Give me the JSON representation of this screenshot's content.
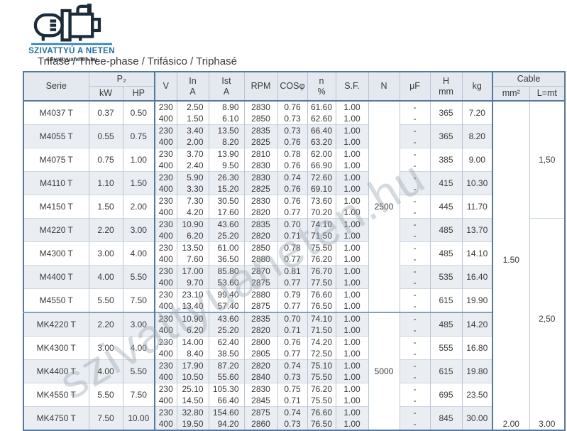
{
  "logo": {
    "brand": "SZIVATTYÚ A NETEN",
    "domain": "szivattyuaneten.hu",
    "brand_color": "#1e6f9e",
    "underline_color": "#2e7fae"
  },
  "title": "Trifase / Three-phase / Trifásico / Triphasé",
  "watermark": "szivattyuaneten.hu",
  "colors": {
    "table_frame": "#54799c",
    "grid_line": "#b7c6d4",
    "stripe": "#eaeef3",
    "header_bg": "#e3e9ee"
  },
  "table": {
    "header": {
      "serie": "Serie",
      "p2": "P₂",
      "kw": "kW",
      "hp": "HP",
      "v": "V",
      "in1": "In",
      "in2": "A",
      "ist1": "Ist",
      "ist2": "A",
      "rpm": "RPM",
      "cos": "COSφ",
      "n1": "n",
      "n2": "%",
      "sf": "S.F.",
      "n_col": "N",
      "uf": "μF",
      "h1": "H",
      "h2": "mm",
      "kg": "kg",
      "cable": "Cable",
      "mm2": "mm²",
      "lmt": "L=mt"
    },
    "models": [
      {
        "serie": "M4037 T",
        "kw": "0.37",
        "hp": "0.50",
        "h": "365",
        "kg": "7.20",
        "rows": [
          {
            "v": "230",
            "in": "2.50",
            "ist": "8.90",
            "rpm": "2830",
            "cos": "0.76",
            "n": "61.60",
            "sf": "1.00",
            "uf": "-"
          },
          {
            "v": "400",
            "in": "1.50",
            "ist": "6.10",
            "rpm": "2850",
            "cos": "0.73",
            "n": "62.60",
            "sf": "1.00",
            "uf": "-"
          }
        ]
      },
      {
        "serie": "M4055 T",
        "kw": "0.55",
        "hp": "0.75",
        "h": "365",
        "kg": "8.20",
        "rows": [
          {
            "v": "230",
            "in": "3.40",
            "ist": "13.50",
            "rpm": "2835",
            "cos": "0.73",
            "n": "66.40",
            "sf": "1.00",
            "uf": "-"
          },
          {
            "v": "400",
            "in": "2.00",
            "ist": "8.20",
            "rpm": "2825",
            "cos": "0.76",
            "n": "63.20",
            "sf": "1.00",
            "uf": "-"
          }
        ]
      },
      {
        "serie": "M4075 T",
        "kw": "0.75",
        "hp": "1.00",
        "h": "385",
        "kg": "9.00",
        "rows": [
          {
            "v": "230",
            "in": "3.70",
            "ist": "13.90",
            "rpm": "2810",
            "cos": "0.78",
            "n": "62.00",
            "sf": "1.00",
            "uf": "-"
          },
          {
            "v": "400",
            "in": "2.40",
            "ist": "9.50",
            "rpm": "2830",
            "cos": "0.76",
            "n": "66.90",
            "sf": "1.00",
            "uf": "-"
          }
        ]
      },
      {
        "serie": "M4110 T",
        "kw": "1.10",
        "hp": "1.50",
        "h": "415",
        "kg": "10.30",
        "rows": [
          {
            "v": "230",
            "in": "5.90",
            "ist": "26.30",
            "rpm": "2830",
            "cos": "0.74",
            "n": "72.60",
            "sf": "1.00",
            "uf": "-"
          },
          {
            "v": "400",
            "in": "3.30",
            "ist": "15.20",
            "rpm": "2825",
            "cos": "0.76",
            "n": "69.10",
            "sf": "1.00",
            "uf": "-"
          }
        ]
      },
      {
        "serie": "M4150 T",
        "kw": "1.50",
        "hp": "2.00",
        "h": "445",
        "kg": "11.70",
        "rows": [
          {
            "v": "230",
            "in": "7.30",
            "ist": "30.50",
            "rpm": "2830",
            "cos": "0.76",
            "n": "73.60",
            "sf": "1.00",
            "uf": "-"
          },
          {
            "v": "400",
            "in": "4.20",
            "ist": "17.60",
            "rpm": "2820",
            "cos": "0.77",
            "n": "70.20",
            "sf": "1.00",
            "uf": "-"
          }
        ]
      },
      {
        "serie": "M4220 T",
        "kw": "2.20",
        "hp": "3.00",
        "h": "485",
        "kg": "13.70",
        "rows": [
          {
            "v": "230",
            "in": "10.90",
            "ist": "43.60",
            "rpm": "2835",
            "cos": "0.70",
            "n": "74.10",
            "sf": "1.00",
            "uf": "-"
          },
          {
            "v": "400",
            "in": "6.20",
            "ist": "25.20",
            "rpm": "2820",
            "cos": "0.71",
            "n": "71.50",
            "sf": "1.00",
            "uf": "-"
          }
        ]
      },
      {
        "serie": "M4300 T",
        "kw": "3.00",
        "hp": "4.00",
        "h": "485",
        "kg": "14.10",
        "rows": [
          {
            "v": "230",
            "in": "13.50",
            "ist": "61.00",
            "rpm": "2850",
            "cos": "0.78",
            "n": "75.50",
            "sf": "1.00",
            "uf": "-"
          },
          {
            "v": "400",
            "in": "7.60",
            "ist": "36.50",
            "rpm": "2880",
            "cos": "0.77",
            "n": "76.20",
            "sf": "1.00",
            "uf": "-"
          }
        ]
      },
      {
        "serie": "M4400 T",
        "kw": "4.00",
        "hp": "5.50",
        "h": "535",
        "kg": "16.40",
        "rows": [
          {
            "v": "230",
            "in": "17.00",
            "ist": "85.80",
            "rpm": "2870",
            "cos": "0.81",
            "n": "76.70",
            "sf": "1.00",
            "uf": "-"
          },
          {
            "v": "400",
            "in": "9.70",
            "ist": "53.60",
            "rpm": "2875",
            "cos": "0.77",
            "n": "77.50",
            "sf": "1.00",
            "uf": "-"
          }
        ]
      },
      {
        "serie": "M4550 T",
        "kw": "5.50",
        "hp": "7.50",
        "h": "615",
        "kg": "19.90",
        "rows": [
          {
            "v": "230",
            "in": "23.10",
            "ist": "99.40",
            "rpm": "2880",
            "cos": "0.79",
            "n": "76.60",
            "sf": "1.00",
            "uf": "-"
          },
          {
            "v": "400",
            "in": "13.40",
            "ist": "57.40",
            "rpm": "2875",
            "cos": "0.77",
            "n": "76.50",
            "sf": "1.00",
            "uf": "-"
          }
        ]
      },
      {
        "serie": "MK4220 T",
        "kw": "2.20",
        "hp": "3.00",
        "h": "485",
        "kg": "14.20",
        "group_start": true,
        "rows": [
          {
            "v": "230",
            "in": "10.90",
            "ist": "43.60",
            "rpm": "2835",
            "cos": "0.70",
            "n": "74.10",
            "sf": "1.00",
            "uf": "-"
          },
          {
            "v": "400",
            "in": "6.20",
            "ist": "25.20",
            "rpm": "2820",
            "cos": "0.71",
            "n": "71.50",
            "sf": "1.00",
            "uf": "-"
          }
        ]
      },
      {
        "serie": "MK4300 T",
        "kw": "3.00",
        "hp": "4.00",
        "h": "555",
        "kg": "16.80",
        "rows": [
          {
            "v": "230",
            "in": "14.00",
            "ist": "62.40",
            "rpm": "2800",
            "cos": "0.76",
            "n": "74.20",
            "sf": "1.00",
            "uf": "-"
          },
          {
            "v": "400",
            "in": "8.40",
            "ist": "38.50",
            "rpm": "2805",
            "cos": "0.77",
            "n": "72.50",
            "sf": "1.00",
            "uf": "-"
          }
        ]
      },
      {
        "serie": "MK4400 T",
        "kw": "4.00",
        "hp": "5.50",
        "h": "615",
        "kg": "19.80",
        "rows": [
          {
            "v": "230",
            "in": "17.90",
            "ist": "87.20",
            "rpm": "2820",
            "cos": "0.74",
            "n": "75.10",
            "sf": "1.00",
            "uf": "-"
          },
          {
            "v": "400",
            "in": "10.50",
            "ist": "55.60",
            "rpm": "2840",
            "cos": "0.73",
            "n": "75.50",
            "sf": "1.00",
            "uf": "-"
          }
        ]
      },
      {
        "serie": "MK4550 T",
        "kw": "5.50",
        "hp": "7.50",
        "h": "695",
        "kg": "23.50",
        "rows": [
          {
            "v": "230",
            "in": "25.10",
            "ist": "105.30",
            "rpm": "2830",
            "cos": "0.75",
            "n": "76.20",
            "sf": "1.00",
            "uf": "-"
          },
          {
            "v": "400",
            "in": "14.50",
            "ist": "66.40",
            "rpm": "2845",
            "cos": "0.71",
            "n": "75.50",
            "sf": "1.00",
            "uf": "-"
          }
        ]
      },
      {
        "serie": "MK4750 T",
        "kw": "7.50",
        "hp": "10.00",
        "h": "845",
        "kg": "30.00",
        "rows": [
          {
            "v": "230",
            "in": "32.80",
            "ist": "154.60",
            "rpm": "2875",
            "cos": "0.74",
            "n": "76.60",
            "sf": "1.00",
            "uf": "-"
          },
          {
            "v": "400",
            "in": "19.50",
            "ist": "94.20",
            "rpm": "2860",
            "cos": "0.73",
            "n": "76.50",
            "sf": "1.00",
            "uf": "-"
          }
        ]
      }
    ],
    "n_groups": [
      {
        "label": "2500",
        "rows": 18
      },
      {
        "label": "5000",
        "rows": 10
      }
    ],
    "cable_mm2": [
      {
        "label": "1.50",
        "rows": 27
      },
      {
        "label": "2.00",
        "rows": 1
      }
    ],
    "cable_lmt": [
      {
        "label": "1,50",
        "rows": 10
      },
      {
        "label": "2,50",
        "rows": 17
      },
      {
        "label": "3.00",
        "rows": 1
      }
    ]
  }
}
